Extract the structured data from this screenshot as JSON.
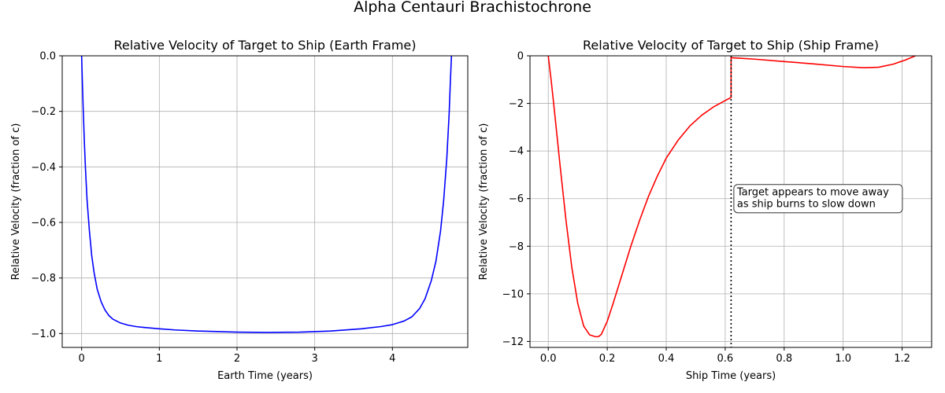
{
  "figure": {
    "suptitle": "Alpha Centauri Brachistochrone"
  },
  "chart_data": [
    {
      "type": "line",
      "title": "Relative Velocity of Target to Ship (Earth Frame)",
      "xlabel": "Earth Time (years)",
      "ylabel": "Relative Velocity (fraction of c)",
      "xlim": [
        -0.25,
        4.97
      ],
      "ylim": [
        -1.05,
        0.0
      ],
      "xticks": [
        0,
        1,
        2,
        3,
        4
      ],
      "yticks": [
        -1.0,
        -0.8,
        -0.6,
        -0.4,
        -0.2,
        0.0
      ],
      "xtick_labels": [
        "0",
        "1",
        "2",
        "3",
        "4"
      ],
      "ytick_labels": [
        "−1.0",
        "−0.8",
        "−0.6",
        "−0.4",
        "−0.2",
        "0.0"
      ],
      "grid": true,
      "series": [
        {
          "color": "#0000ff",
          "x": [
            0.0,
            0.01,
            0.02,
            0.035,
            0.05,
            0.07,
            0.1,
            0.13,
            0.16,
            0.2,
            0.25,
            0.3,
            0.35,
            0.4,
            0.5,
            0.6,
            0.7,
            0.8,
            1.0,
            1.2,
            1.5,
            2.0,
            2.38,
            2.8,
            3.2,
            3.6,
            3.85,
            4.0,
            4.15,
            4.25,
            4.35,
            4.42,
            4.5,
            4.56,
            4.62,
            4.66,
            4.7,
            4.73,
            4.745,
            4.76
          ],
          "y": [
            0.0,
            -0.1,
            -0.19,
            -0.31,
            -0.41,
            -0.52,
            -0.63,
            -0.72,
            -0.78,
            -0.84,
            -0.885,
            -0.915,
            -0.935,
            -0.948,
            -0.962,
            -0.97,
            -0.975,
            -0.978,
            -0.983,
            -0.987,
            -0.991,
            -0.995,
            -0.996,
            -0.995,
            -0.991,
            -0.983,
            -0.975,
            -0.968,
            -0.955,
            -0.94,
            -0.91,
            -0.875,
            -0.81,
            -0.74,
            -0.63,
            -0.52,
            -0.37,
            -0.21,
            -0.1,
            0.0
          ]
        }
      ]
    },
    {
      "type": "line",
      "title": "Relative Velocity of Target to Ship (Ship Frame)",
      "xlabel": "Ship Time (years)",
      "ylabel": "Relative Velocity (fraction of c)",
      "xlim": [
        -0.062,
        1.3
      ],
      "ylim": [
        -12.25,
        0.0
      ],
      "xticks": [
        0.0,
        0.2,
        0.4,
        0.6,
        0.8,
        1.0,
        1.2
      ],
      "yticks": [
        -12,
        -10,
        -8,
        -6,
        -4,
        -2,
        0
      ],
      "xtick_labels": [
        "0.0",
        "0.2",
        "0.4",
        "0.6",
        "0.8",
        "1.0",
        "1.2"
      ],
      "ytick_labels": [
        "−12",
        "−10",
        "−8",
        "−6",
        "−4",
        "−2",
        "0"
      ],
      "grid": true,
      "series": [
        {
          "color": "#ff0000",
          "x": [
            0.0,
            0.01,
            0.02,
            0.04,
            0.06,
            0.08,
            0.1,
            0.12,
            0.14,
            0.16,
            0.17,
            0.18,
            0.2,
            0.22,
            0.25,
            0.28,
            0.31,
            0.34,
            0.37,
            0.4,
            0.44,
            0.48,
            0.52,
            0.56,
            0.6,
            0.62,
            0.62,
            0.65,
            0.7,
            0.8,
            0.9,
            1.0,
            1.07,
            1.12,
            1.17,
            1.21,
            1.245
          ],
          "y": [
            0.0,
            -1.05,
            -2.2,
            -4.6,
            -6.9,
            -8.9,
            -10.4,
            -11.35,
            -11.72,
            -11.8,
            -11.8,
            -11.7,
            -11.15,
            -10.4,
            -9.2,
            -8.0,
            -6.9,
            -5.9,
            -5.05,
            -4.3,
            -3.55,
            -2.95,
            -2.5,
            -2.15,
            -1.88,
            -1.75,
            -0.08,
            -0.1,
            -0.14,
            -0.24,
            -0.34,
            -0.45,
            -0.5,
            -0.48,
            -0.35,
            -0.18,
            0.0
          ]
        }
      ],
      "vline": {
        "x": 0.62,
        "style": "dotted"
      },
      "annotation": {
        "lines": [
          "Target appears to move away",
          "as ship burns to slow down"
        ],
        "x": 0.64,
        "y": -6.0
      }
    }
  ]
}
